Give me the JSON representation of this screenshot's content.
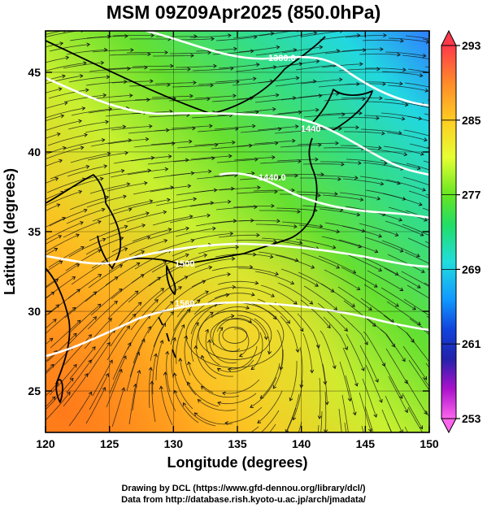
{
  "title": "MSM 09Z09Apr2025 (850.0hPa)",
  "credits": [
    "Drawing by DCL (https://www.gfd-dennou.org/library/dcl/)",
    "Data from http://database.rish.kyoto-u.ac.jp/arch/jmadata/"
  ],
  "map": {
    "xlabel": "Longitude (degrees)",
    "ylabel": "Latitude  (degrees)",
    "xlim": [
      120,
      150
    ],
    "ylim": [
      22.4,
      47.6
    ],
    "xticks": [
      "120",
      "125",
      "130",
      "135",
      "140",
      "145",
      "150"
    ],
    "yticks": [
      "25",
      "30",
      "35",
      "40",
      "45"
    ],
    "contour_labels": [
      "1380.0",
      "1440",
      "1440.0",
      "1500",
      "1560"
    ],
    "cyclone_center": [
      134.8,
      28.5
    ]
  },
  "colorbar": {
    "ticks": [
      "293",
      "285",
      "277",
      "269",
      "261",
      "253"
    ],
    "colors": [
      "#ff4455",
      "#ff8a2a",
      "#ffcc22",
      "#e6ff33",
      "#88ee22",
      "#33dd33",
      "#22dd99",
      "#22ddee",
      "#1199ff",
      "#1144dd",
      "#2222aa",
      "#7711bb",
      "#dd22dd",
      "#ff66ee"
    ]
  }
}
